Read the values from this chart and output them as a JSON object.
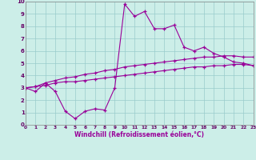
{
  "xlabel": "Windchill (Refroidissement éolien,°C)",
  "x": [
    0,
    1,
    2,
    3,
    4,
    5,
    6,
    7,
    8,
    9,
    10,
    11,
    12,
    13,
    14,
    15,
    16,
    17,
    18,
    19,
    20,
    21,
    22,
    23
  ],
  "y_main": [
    3.0,
    2.7,
    3.4,
    2.7,
    1.1,
    0.5,
    1.1,
    1.3,
    1.2,
    3.0,
    9.8,
    8.8,
    9.2,
    7.8,
    7.8,
    8.1,
    6.3,
    6.0,
    6.3,
    5.8,
    5.5,
    5.1,
    5.0,
    4.8
  ],
  "y_upper": [
    3.0,
    3.1,
    3.4,
    3.6,
    3.8,
    3.9,
    4.1,
    4.2,
    4.4,
    4.5,
    4.7,
    4.8,
    4.9,
    5.0,
    5.1,
    5.2,
    5.3,
    5.4,
    5.5,
    5.5,
    5.6,
    5.6,
    5.5,
    5.5
  ],
  "y_lower": [
    3.0,
    3.1,
    3.2,
    3.4,
    3.5,
    3.5,
    3.6,
    3.7,
    3.8,
    3.9,
    4.0,
    4.1,
    4.2,
    4.3,
    4.4,
    4.5,
    4.6,
    4.7,
    4.7,
    4.8,
    4.8,
    4.9,
    4.9,
    4.8
  ],
  "bg_color": "#cceee8",
  "line_color": "#990099",
  "grid_color": "#99cccc",
  "xlim": [
    0,
    23
  ],
  "ylim": [
    0,
    10
  ],
  "yticks": [
    0,
    1,
    2,
    3,
    4,
    5,
    6,
    7,
    8,
    9,
    10
  ],
  "xticks": [
    0,
    1,
    2,
    3,
    4,
    5,
    6,
    7,
    8,
    9,
    10,
    11,
    12,
    13,
    14,
    15,
    16,
    17,
    18,
    19,
    20,
    21,
    22,
    23
  ]
}
